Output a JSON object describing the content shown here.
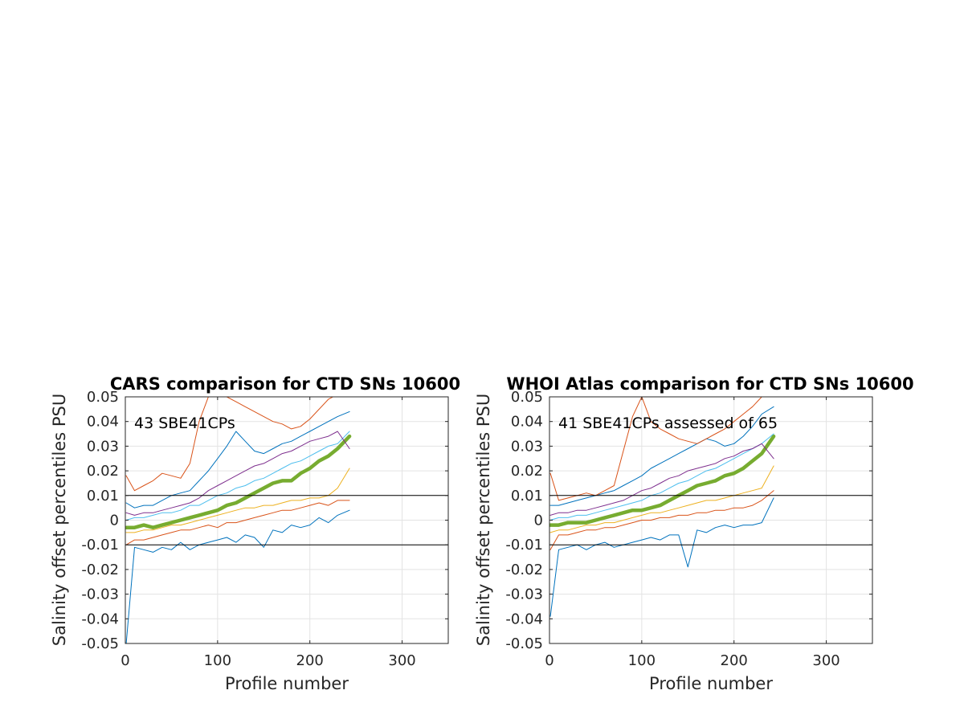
{
  "chart_data": [
    {
      "type": "line",
      "title": "CARS comparison for CTD SNs 10600",
      "xlabel": "Profile number",
      "ylabel": "Salinity offset percentiles PSU",
      "annotation": "43 SBE41CPs",
      "xlim": [
        0,
        350
      ],
      "ylim": [
        -0.05,
        0.05
      ],
      "xticks": [
        "0",
        "100",
        "200",
        "300"
      ],
      "yticks": [
        "-0.05",
        "-0.04",
        "-0.03",
        "-0.02",
        "-0.01",
        "0",
        "0.01",
        "0.02",
        "0.03",
        "0.04",
        "0.05"
      ],
      "grid": true,
      "reference_lines": [
        0.01,
        -0.01
      ],
      "x": [
        1,
        10,
        20,
        30,
        40,
        50,
        60,
        70,
        80,
        90,
        100,
        110,
        120,
        130,
        140,
        150,
        160,
        170,
        180,
        190,
        200,
        210,
        220,
        230,
        243
      ],
      "series": [
        {
          "color": "#0072BD",
          "width": 1.0,
          "values": [
            -0.05,
            -0.011,
            -0.012,
            -0.013,
            -0.011,
            -0.012,
            -0.009,
            -0.012,
            -0.01,
            -0.009,
            -0.008,
            -0.007,
            -0.009,
            -0.006,
            -0.007,
            -0.011,
            -0.004,
            -0.005,
            -0.002,
            -0.003,
            -0.002,
            0.001,
            -0.001,
            0.002,
            0.004
          ]
        },
        {
          "color": "#D95319",
          "width": 1.0,
          "values": [
            -0.01,
            -0.008,
            -0.008,
            -0.007,
            -0.006,
            -0.005,
            -0.004,
            -0.004,
            -0.003,
            -0.002,
            -0.003,
            -0.001,
            -0.001,
            0.0,
            0.001,
            0.002,
            0.003,
            0.004,
            0.004,
            0.005,
            0.006,
            0.007,
            0.006,
            0.008,
            0.008
          ]
        },
        {
          "color": "#EDB120",
          "width": 1.0,
          "values": [
            -0.005,
            -0.005,
            -0.004,
            -0.004,
            -0.003,
            -0.002,
            -0.002,
            -0.001,
            0.0,
            0.001,
            0.002,
            0.003,
            0.004,
            0.005,
            0.005,
            0.006,
            0.006,
            0.007,
            0.008,
            0.008,
            0.009,
            0.009,
            0.01,
            0.013,
            0.021
          ]
        },
        {
          "color": "#77AC30",
          "width": 4.5,
          "values": [
            -0.003,
            -0.003,
            -0.002,
            -0.003,
            -0.002,
            -0.001,
            0.0,
            0.001,
            0.002,
            0.003,
            0.004,
            0.006,
            0.007,
            0.009,
            0.011,
            0.013,
            0.015,
            0.016,
            0.016,
            0.019,
            0.021,
            0.024,
            0.026,
            0.029,
            0.034
          ]
        },
        {
          "color": "#4DBEEE",
          "width": 1.0,
          "values": [
            0.0,
            0.001,
            0.001,
            0.002,
            0.003,
            0.003,
            0.004,
            0.006,
            0.006,
            0.008,
            0.01,
            0.011,
            0.013,
            0.014,
            0.016,
            0.017,
            0.019,
            0.021,
            0.023,
            0.024,
            0.026,
            0.028,
            0.03,
            0.031,
            0.036
          ]
        },
        {
          "color": "#7E2F8E",
          "width": 1.0,
          "values": [
            0.003,
            0.002,
            0.003,
            0.003,
            0.004,
            0.005,
            0.006,
            0.007,
            0.009,
            0.012,
            0.014,
            0.016,
            0.018,
            0.02,
            0.022,
            0.023,
            0.025,
            0.027,
            0.028,
            0.03,
            0.032,
            0.033,
            0.034,
            0.036,
            0.029
          ]
        },
        {
          "color": "#0072BD",
          "width": 1.0,
          "values": [
            0.007,
            0.005,
            0.006,
            0.006,
            0.008,
            0.01,
            0.011,
            0.012,
            0.016,
            0.02,
            0.025,
            0.03,
            0.036,
            0.032,
            0.028,
            0.027,
            0.029,
            0.031,
            0.032,
            0.034,
            0.036,
            0.038,
            0.04,
            0.042,
            0.044
          ]
        },
        {
          "color": "#D95319",
          "width": 1.0,
          "values": [
            0.018,
            0.012,
            0.014,
            0.016,
            0.019,
            0.018,
            0.017,
            0.023,
            0.04,
            0.05,
            0.055,
            0.05,
            0.048,
            0.046,
            0.044,
            0.042,
            0.04,
            0.039,
            0.037,
            0.038,
            0.041,
            0.045,
            0.049,
            0.051,
            0.052
          ]
        }
      ]
    },
    {
      "type": "line",
      "title": "WHOI Atlas comparison for CTD SNs 10600",
      "xlabel": "Profile number",
      "ylabel": "Salinity offset percentiles PSU",
      "annotation": "41 SBE41CPs assessed of 65",
      "xlim": [
        0,
        350
      ],
      "ylim": [
        -0.05,
        0.05
      ],
      "xticks": [
        "0",
        "100",
        "200",
        "300"
      ],
      "yticks": [
        "-0.05",
        "-0.04",
        "-0.03",
        "-0.02",
        "-0.01",
        "0",
        "0.01",
        "0.02",
        "0.03",
        "0.04",
        "0.05"
      ],
      "grid": true,
      "reference_lines": [
        0.01,
        -0.01
      ],
      "x": [
        1,
        10,
        20,
        30,
        40,
        50,
        60,
        70,
        80,
        90,
        100,
        110,
        120,
        130,
        140,
        150,
        160,
        170,
        180,
        190,
        200,
        210,
        220,
        230,
        243
      ],
      "series": [
        {
          "color": "#0072BD",
          "width": 1.0,
          "values": [
            -0.039,
            -0.012,
            -0.011,
            -0.01,
            -0.012,
            -0.01,
            -0.009,
            -0.011,
            -0.01,
            -0.009,
            -0.008,
            -0.007,
            -0.008,
            -0.006,
            -0.006,
            -0.019,
            -0.004,
            -0.005,
            -0.003,
            -0.002,
            -0.003,
            -0.002,
            -0.002,
            -0.001,
            0.009
          ]
        },
        {
          "color": "#D95319",
          "width": 1.0,
          "values": [
            -0.012,
            -0.006,
            -0.006,
            -0.005,
            -0.004,
            -0.004,
            -0.003,
            -0.003,
            -0.002,
            -0.001,
            0.0,
            0.0,
            0.001,
            0.001,
            0.002,
            0.002,
            0.003,
            0.003,
            0.004,
            0.004,
            0.005,
            0.005,
            0.006,
            0.008,
            0.012
          ]
        },
        {
          "color": "#EDB120",
          "width": 1.0,
          "values": [
            -0.005,
            -0.004,
            -0.004,
            -0.003,
            -0.002,
            -0.002,
            -0.001,
            -0.001,
            0.0,
            0.001,
            0.002,
            0.003,
            0.003,
            0.004,
            0.005,
            0.006,
            0.007,
            0.008,
            0.008,
            0.009,
            0.01,
            0.011,
            0.012,
            0.013,
            0.022
          ]
        },
        {
          "color": "#77AC30",
          "width": 4.5,
          "values": [
            -0.002,
            -0.002,
            -0.001,
            -0.001,
            -0.001,
            0.0,
            0.001,
            0.002,
            0.003,
            0.004,
            0.004,
            0.005,
            0.006,
            0.008,
            0.01,
            0.012,
            0.014,
            0.015,
            0.016,
            0.018,
            0.019,
            0.021,
            0.024,
            0.027,
            0.034
          ]
        },
        {
          "color": "#4DBEEE",
          "width": 1.0,
          "values": [
            0.0,
            0.001,
            0.001,
            0.002,
            0.002,
            0.003,
            0.004,
            0.005,
            0.006,
            0.007,
            0.008,
            0.01,
            0.011,
            0.013,
            0.015,
            0.016,
            0.018,
            0.02,
            0.021,
            0.023,
            0.025,
            0.027,
            0.029,
            0.031,
            0.035
          ]
        },
        {
          "color": "#7E2F8E",
          "width": 1.0,
          "values": [
            0.002,
            0.003,
            0.003,
            0.004,
            0.004,
            0.005,
            0.006,
            0.007,
            0.008,
            0.01,
            0.012,
            0.013,
            0.015,
            0.017,
            0.018,
            0.02,
            0.021,
            0.022,
            0.023,
            0.025,
            0.026,
            0.028,
            0.029,
            0.031,
            0.025
          ]
        },
        {
          "color": "#0072BD",
          "width": 1.0,
          "values": [
            0.006,
            0.006,
            0.007,
            0.008,
            0.009,
            0.01,
            0.011,
            0.012,
            0.014,
            0.016,
            0.018,
            0.021,
            0.023,
            0.025,
            0.027,
            0.029,
            0.031,
            0.033,
            0.032,
            0.03,
            0.031,
            0.034,
            0.038,
            0.043,
            0.046
          ]
        },
        {
          "color": "#D95319",
          "width": 1.0,
          "values": [
            0.019,
            0.008,
            0.009,
            0.01,
            0.011,
            0.01,
            0.012,
            0.014,
            0.028,
            0.042,
            0.05,
            0.04,
            0.037,
            0.035,
            0.033,
            0.032,
            0.031,
            0.033,
            0.035,
            0.037,
            0.04,
            0.043,
            0.046,
            0.05,
            0.053
          ]
        }
      ]
    }
  ]
}
